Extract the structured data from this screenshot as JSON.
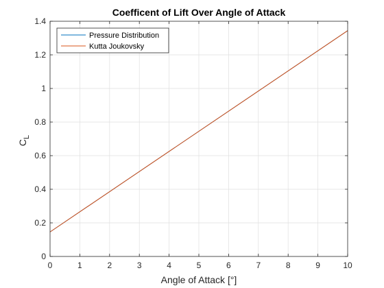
{
  "chart_data": {
    "type": "line",
    "title": "Coefficent of Lift Over Angle of Attack",
    "xlabel": "Angle of Attack [°]",
    "ylabel_main": "C",
    "ylabel_sub": "L",
    "xlim": [
      0,
      10
    ],
    "ylim": [
      0,
      1.4
    ],
    "xticks": [
      0,
      1,
      2,
      3,
      4,
      5,
      6,
      7,
      8,
      9,
      10
    ],
    "yticks": [
      0,
      0.2,
      0.4,
      0.6,
      0.8,
      1,
      1.2,
      1.4
    ],
    "xtick_labels": [
      "0",
      "1",
      "2",
      "3",
      "4",
      "5",
      "6",
      "7",
      "8",
      "9",
      "10"
    ],
    "ytick_labels": [
      "0",
      "0.2",
      "0.4",
      "0.6",
      "0.8",
      "1",
      "1.2",
      "1.4"
    ],
    "grid": true,
    "legend_position": "top-left",
    "series": [
      {
        "name": "Pressure Distribution",
        "color": "#0072BD",
        "x": [
          0,
          10
        ],
        "y": [
          0.146,
          1.344
        ]
      },
      {
        "name": "Kutta Joukovsky",
        "color": "#D95319",
        "x": [
          0,
          10
        ],
        "y": [
          0.146,
          1.344
        ]
      }
    ]
  }
}
